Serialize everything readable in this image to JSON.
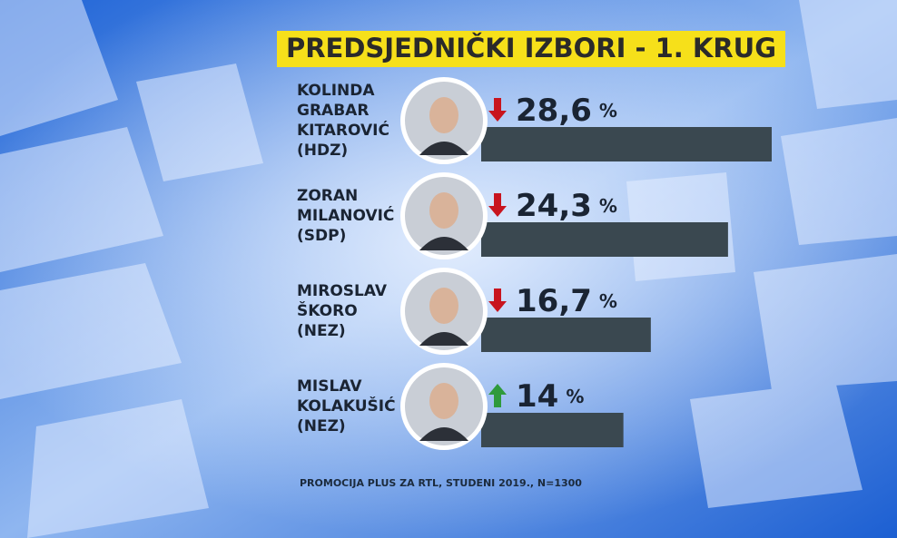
{
  "chart_data": {
    "type": "bar",
    "title": "PREDSJEDNIČKI IZBORI - 1. KRUG",
    "categories": [
      [
        "KOLINDA",
        "GRABAR",
        "KITAROVIĆ",
        "(HDZ)"
      ],
      [
        "ZORAN",
        "MILANOVIĆ",
        "(SDP)"
      ],
      [
        "MIROSLAV",
        "ŠKORO",
        "(NEZ)"
      ],
      [
        "MISLAV",
        "KOLAKUŠIĆ",
        "(NEZ)"
      ]
    ],
    "values": [
      28.6,
      24.3,
      16.7,
      14
    ],
    "value_labels": [
      "28,6",
      "24,3",
      "16,7",
      "14"
    ],
    "unit": "%",
    "trends": [
      "down",
      "down",
      "down",
      "up"
    ],
    "color": "#3a4850",
    "down_color": "#c8141e",
    "up_color": "#2f9a3c",
    "source": "PROMOCIJA PLUS ZA RTL, STUDENI 2019., N=1300"
  }
}
